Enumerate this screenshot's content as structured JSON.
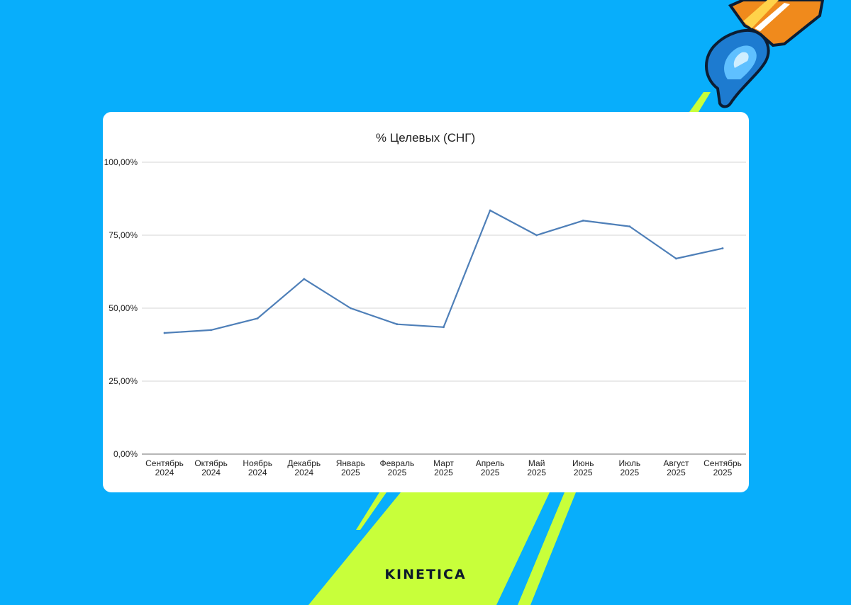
{
  "brand": {
    "logo_text": "KINETICA"
  },
  "colors": {
    "background": "#08aefb",
    "streak": "#c8ff3a",
    "series_line": "#4e7fb8",
    "card": "#ffffff"
  },
  "decoration": {
    "rocket_icon": "rocket-icon"
  },
  "chart_data": {
    "type": "line",
    "title": "% Целевых (СНГ)",
    "xlabel": "",
    "ylabel": "",
    "ylim": [
      0,
      100
    ],
    "y_ticks": [
      0,
      25,
      50,
      75,
      100
    ],
    "y_tick_labels": [
      "0,00%",
      "25,00%",
      "50,00%",
      "75,00%",
      "100,00%"
    ],
    "grid": true,
    "legend": "none",
    "categories": [
      [
        "Сентябрь",
        "2024"
      ],
      [
        "Октябрь",
        "2024"
      ],
      [
        "Ноябрь",
        "2024"
      ],
      [
        "Декабрь",
        "2024"
      ],
      [
        "Январь",
        "2025"
      ],
      [
        "Февраль",
        "2025"
      ],
      [
        "Март",
        "2025"
      ],
      [
        "Апрель",
        "2025"
      ],
      [
        "Май",
        "2025"
      ],
      [
        "Июнь",
        "2025"
      ],
      [
        "Июль",
        "2025"
      ],
      [
        "Август",
        "2025"
      ],
      [
        "Сентябрь",
        "2025"
      ]
    ],
    "series": [
      {
        "values": [
          41.5,
          42.5,
          46.5,
          60,
          50,
          44.5,
          43.5,
          83.5,
          75,
          80,
          78,
          67,
          70.5
        ]
      }
    ]
  }
}
